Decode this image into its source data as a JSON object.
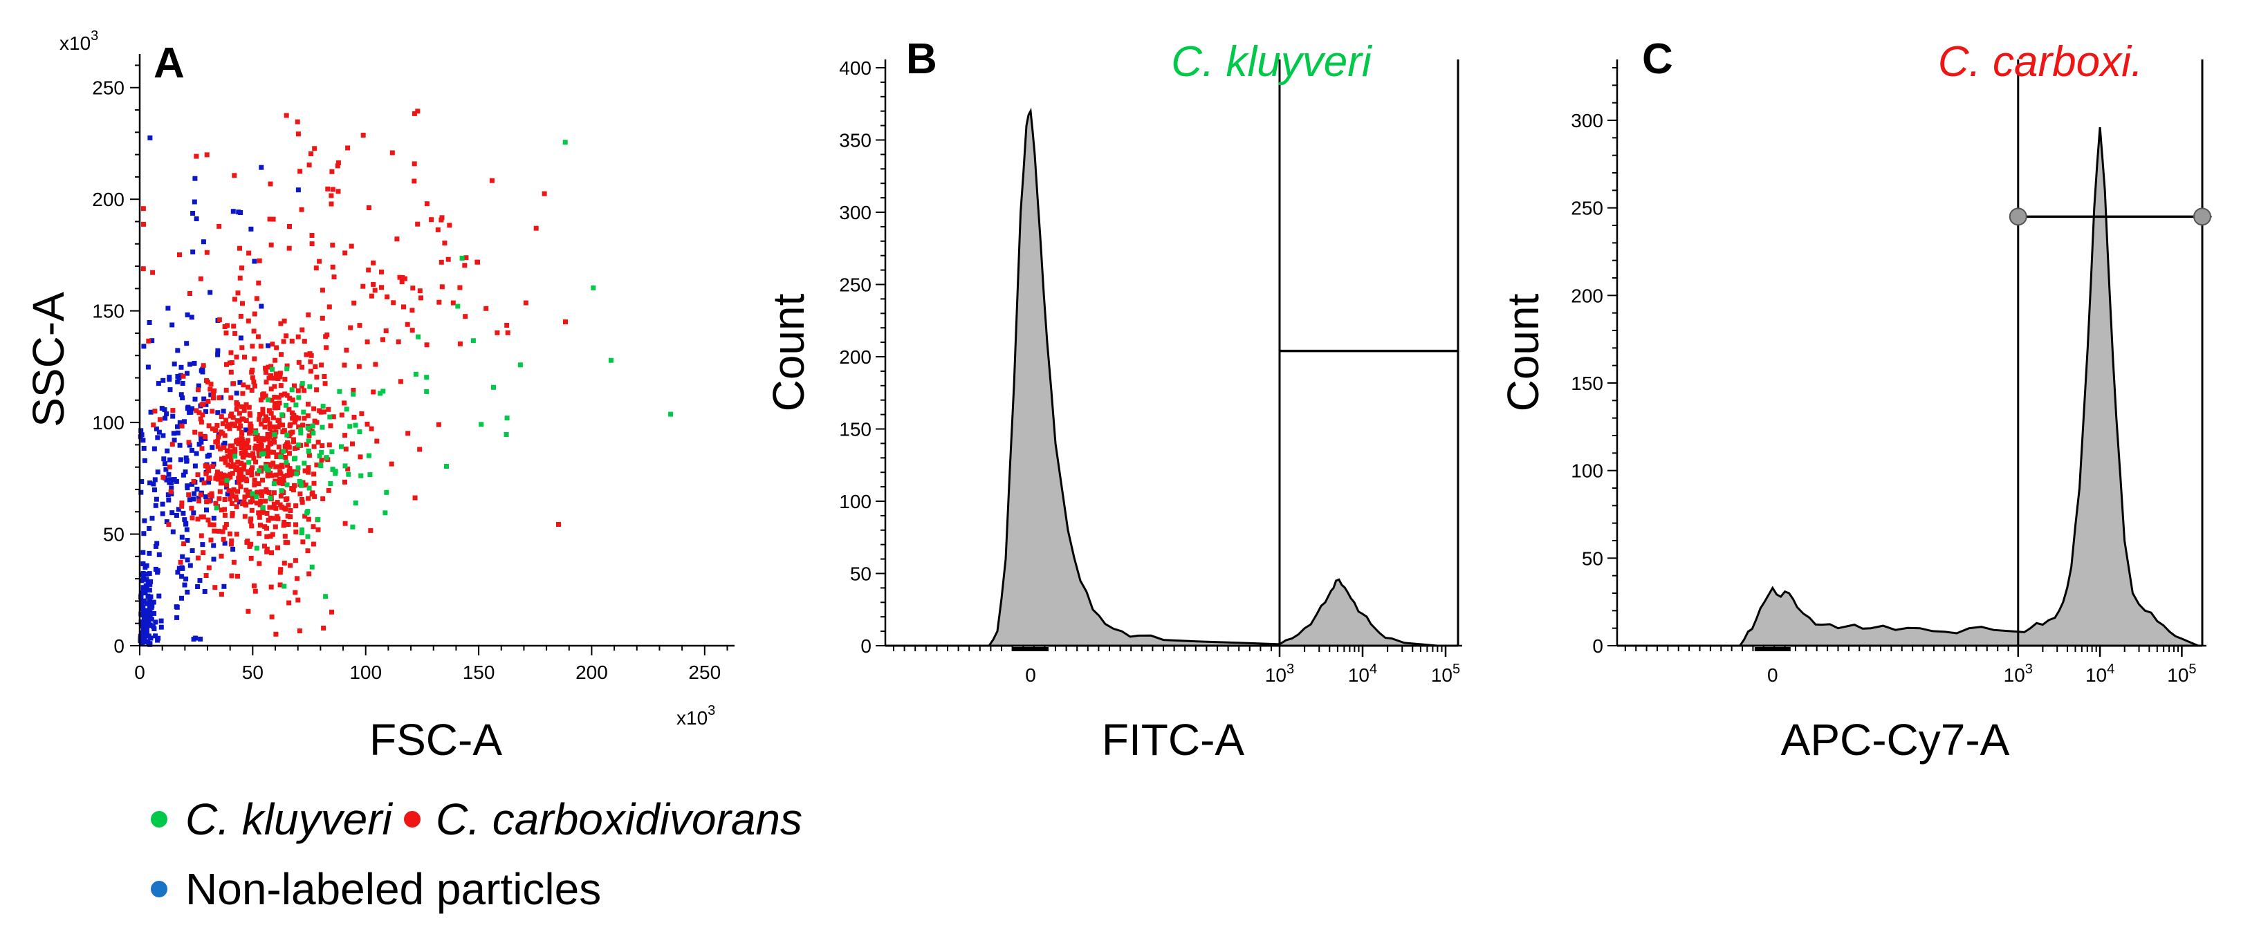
{
  "colors": {
    "kluyveri": "#00c94a",
    "carboxidivorans": "#ee1515",
    "non_labeled": "#0b16c8",
    "legend_non_labeled": "#1a74c6",
    "histogram_fill": "#b8b8b8",
    "axis": "#000000"
  },
  "legend": {
    "kluyveri": "C. kluyveri",
    "carboxidivorans": "C. carboxidivorans",
    "non_labeled": "Non-labeled particles"
  },
  "chart_data": [
    {
      "type": "scatter",
      "panel": "A",
      "xlabel": "FSC-A",
      "ylabel": "SSC-A",
      "x_multiplier": "x10^3",
      "y_multiplier": "x10^3",
      "xlim": [
        0,
        262
      ],
      "ylim": [
        0,
        262
      ],
      "x_ticks": [
        0,
        50,
        100,
        150,
        200,
        250
      ],
      "y_ticks": [
        0,
        50,
        100,
        150,
        200,
        250
      ],
      "series": [
        {
          "name": "Non-labeled particles",
          "color_key": "non_labeled",
          "count": 330,
          "clusters": [
            {
              "cx": 3,
              "cy": 15,
              "sx": 2.5,
              "sy": 12,
              "share": 0.33
            },
            {
              "cx": 20,
              "cy": 80,
              "sx": 11,
              "sy": 32,
              "share": 0.62
            },
            {
              "cx": 45,
              "cy": 190,
              "sx": 12,
              "sy": 30,
              "share": 0.05
            }
          ]
        },
        {
          "name": "C. carboxidivorans",
          "color_key": "carboxidivorans",
          "count": 820,
          "clusters": [
            {
              "cx": 52,
              "cy": 85,
              "sx": 15,
              "sy": 26,
              "share": 0.8
            },
            {
              "cx": 95,
              "cy": 160,
              "sx": 38,
              "sy": 38,
              "share": 0.2
            }
          ]
        },
        {
          "name": "C. kluyveri",
          "color_key": "kluyveri",
          "count": 110,
          "clusters": [
            {
              "cx": 75,
              "cy": 82,
              "sx": 16,
              "sy": 20,
              "share": 0.85
            },
            {
              "cx": 165,
              "cy": 130,
              "sx": 40,
              "sy": 30,
              "share": 0.15
            }
          ]
        }
      ]
    },
    {
      "type": "area",
      "panel": "B",
      "xlabel": "FITC-A",
      "ylabel": "Count",
      "gate_label": "C. kluyveri",
      "gate_color_key": "kluyveri",
      "ylim": [
        0,
        400
      ],
      "y_ticks": [
        0,
        50,
        100,
        150,
        200,
        250,
        300,
        350,
        400
      ],
      "x_ticks": [
        {
          "label": "0",
          "value": 0
        },
        {
          "base": "10",
          "exp": "3",
          "value": 3
        },
        {
          "base": "10",
          "exp": "4",
          "value": 4
        },
        {
          "base": "10",
          "exp": "5",
          "value": 5
        }
      ],
      "x_scale_note": "biexponential; values expressed as display position in decades, 0 maps to the zero tick",
      "xlim": [
        -1.75,
        5.15
      ],
      "gate_range": [
        3.0,
        5.15
      ],
      "gate_level": 204,
      "histogram": [
        [
          -1.75,
          0
        ],
        [
          -0.5,
          0
        ],
        [
          -0.4,
          10
        ],
        [
          -0.3,
          60
        ],
        [
          -0.2,
          180
        ],
        [
          -0.12,
          300
        ],
        [
          -0.05,
          360
        ],
        [
          0.0,
          370
        ],
        [
          0.05,
          340
        ],
        [
          0.12,
          280
        ],
        [
          0.2,
          210
        ],
        [
          0.3,
          140
        ],
        [
          0.45,
          80
        ],
        [
          0.6,
          45
        ],
        [
          0.75,
          25
        ],
        [
          0.9,
          15
        ],
        [
          1.1,
          10
        ],
        [
          1.3,
          7
        ],
        [
          1.6,
          4
        ],
        [
          2.0,
          3
        ],
        [
          2.5,
          2
        ],
        [
          3.0,
          1
        ],
        [
          3.15,
          5
        ],
        [
          3.3,
          12
        ],
        [
          3.45,
          22
        ],
        [
          3.55,
          30
        ],
        [
          3.62,
          38
        ],
        [
          3.68,
          45
        ],
        [
          3.75,
          42
        ],
        [
          3.82,
          37
        ],
        [
          3.9,
          30
        ],
        [
          4.0,
          22
        ],
        [
          4.1,
          15
        ],
        [
          4.2,
          9
        ],
        [
          4.35,
          5
        ],
        [
          4.5,
          2
        ],
        [
          4.7,
          1
        ],
        [
          4.9,
          0
        ],
        [
          5.15,
          0
        ]
      ]
    },
    {
      "type": "area",
      "panel": "C",
      "xlabel": "APC-Cy7-A",
      "ylabel": "Count",
      "gate_label": "C. carboxi.",
      "gate_color_key": "carboxidivorans",
      "ylim": [
        0,
        330
      ],
      "y_ticks": [
        0,
        50,
        100,
        150,
        200,
        250,
        300
      ],
      "x_ticks": [
        {
          "label": "0",
          "value": 0
        },
        {
          "base": "10",
          "exp": "3",
          "value": 3
        },
        {
          "base": "10",
          "exp": "4",
          "value": 4
        },
        {
          "base": "10",
          "exp": "5",
          "value": 5
        }
      ],
      "x_scale_note": "biexponential; values expressed as display position in decades, 0 maps to the zero tick",
      "xlim": [
        -1.9,
        5.25
      ],
      "gate_range": [
        3.0,
        5.25
      ],
      "gate_level": 245,
      "histogram": [
        [
          -1.9,
          0
        ],
        [
          -0.4,
          0
        ],
        [
          -0.3,
          8
        ],
        [
          -0.2,
          15
        ],
        [
          -0.1,
          25
        ],
        [
          0.0,
          33
        ],
        [
          0.1,
          28
        ],
        [
          0.2,
          30
        ],
        [
          0.3,
          22
        ],
        [
          0.45,
          16
        ],
        [
          0.6,
          12
        ],
        [
          0.8,
          10
        ],
        [
          1.0,
          12
        ],
        [
          1.2,
          10
        ],
        [
          1.5,
          9
        ],
        [
          1.8,
          10
        ],
        [
          2.1,
          8
        ],
        [
          2.4,
          10
        ],
        [
          2.7,
          9
        ],
        [
          3.0,
          8
        ],
        [
          3.15,
          10
        ],
        [
          3.3,
          12
        ],
        [
          3.45,
          16
        ],
        [
          3.55,
          25
        ],
        [
          3.65,
          45
        ],
        [
          3.75,
          90
        ],
        [
          3.85,
          170
        ],
        [
          3.93,
          250
        ],
        [
          4.0,
          296
        ],
        [
          4.06,
          260
        ],
        [
          4.12,
          200
        ],
        [
          4.2,
          130
        ],
        [
          4.3,
          60
        ],
        [
          4.4,
          30
        ],
        [
          4.55,
          20
        ],
        [
          4.7,
          14
        ],
        [
          4.85,
          8
        ],
        [
          5.0,
          4
        ],
        [
          5.2,
          0
        ],
        [
          5.25,
          0
        ]
      ]
    }
  ]
}
